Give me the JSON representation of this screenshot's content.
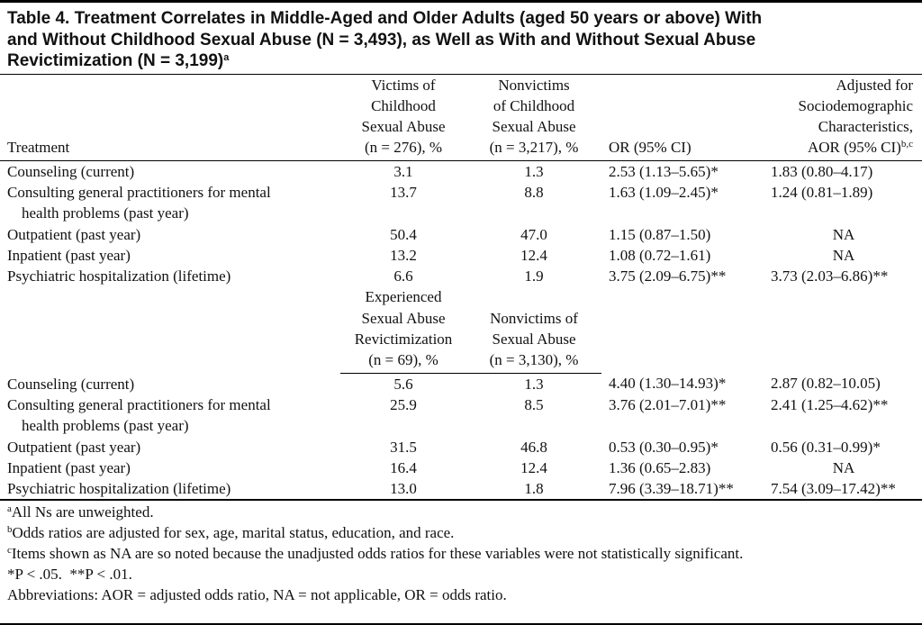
{
  "title": {
    "lines": [
      "Table 4. Treatment Correlates in Middle-Aged and Older Adults (aged 50 years or above) With",
      "and Without Childhood Sexual Abuse (N = 3,493), as Well as With and Without Sexual Abuse",
      "Revictimization (N = 3,199)"
    ],
    "note": "a"
  },
  "table": {
    "header": [
      {
        "lines": [
          "Treatment"
        ]
      },
      {
        "lines": [
          "Victims of",
          "Childhood",
          "Sexual Abuse",
          "(n = 276), %"
        ]
      },
      {
        "lines": [
          "Nonvictims",
          "of Childhood",
          "Sexual Abuse",
          "(n = 3,217), %"
        ]
      },
      {
        "lines": [
          "OR (95% CI)"
        ]
      },
      {
        "lines": [
          "Adjusted for",
          "Sociodemographic",
          "Characteristics,",
          "AOR (95% CI)"
        ],
        "note": "b,c"
      }
    ],
    "sections": [
      {
        "rows": [
          [
            [
              "Counseling (current)"
            ],
            "3.1",
            "1.3",
            "2.53 (1.13–5.65)*",
            "1.83 (0.80–4.17)"
          ],
          [
            [
              "Consulting general practitioners for mental",
              "health problems (past year)"
            ],
            "13.7",
            "8.8",
            "1.63 (1.09–2.45)*",
            "1.24 (0.81–1.89)"
          ],
          [
            [
              "Outpatient (past year)"
            ],
            "50.4",
            "47.0",
            "1.15 (0.87–1.50)",
            "NA"
          ],
          [
            [
              "Inpatient (past year)"
            ],
            "13.2",
            "12.4",
            "1.08 (0.72–1.61)",
            "NA"
          ],
          [
            [
              "Psychiatric hospitalization (lifetime)"
            ],
            "6.6",
            "1.9",
            "3.75 (2.09–6.75)**",
            "3.73 (2.03–6.86)**"
          ]
        ]
      },
      {
        "columns": [
          [
            "Experienced",
            "Sexual Abuse",
            "Revictimization",
            "(n = 69), %"
          ],
          [
            "Nonvictims of",
            "Sexual Abuse",
            "(n = 3,130), %"
          ]
        ],
        "rows": [
          [
            [
              "Counseling (current)"
            ],
            "5.6",
            "1.3",
            "4.40 (1.30–14.93)*",
            "2.87 (0.82–10.05)"
          ],
          [
            [
              "Consulting general practitioners for mental",
              "health problems (past year)"
            ],
            "25.9",
            "8.5",
            "3.76 (2.01–7.01)**",
            "2.41 (1.25–4.62)**"
          ],
          [
            [
              "Outpatient (past year)"
            ],
            "31.5",
            "46.8",
            "0.53 (0.30–0.95)*",
            "0.56 (0.31–0.99)*"
          ],
          [
            [
              "Inpatient (past year)"
            ],
            "16.4",
            "12.4",
            "1.36 (0.65–2.83)",
            "NA"
          ],
          [
            [
              "Psychiatric hospitalization (lifetime)"
            ],
            "13.0",
            "1.8",
            "7.96 (3.39–18.71)**",
            "7.54 (3.09–17.42)**"
          ]
        ]
      }
    ]
  },
  "footnotes": [
    {
      "mark": "a",
      "text": "All Ns are unweighted."
    },
    {
      "mark": "b",
      "text": "Odds ratios are adjusted for sex, age, marital status, education, and race."
    },
    {
      "mark": "c",
      "text": "Items shown as NA are so noted because the unadjusted odds ratios for these variables were not statistically significant."
    },
    {
      "text": "*P < .05.  **P < .01."
    },
    {
      "text": "Abbreviations: AOR = adjusted odds ratio, NA = not applicable, OR = odds ratio."
    }
  ]
}
